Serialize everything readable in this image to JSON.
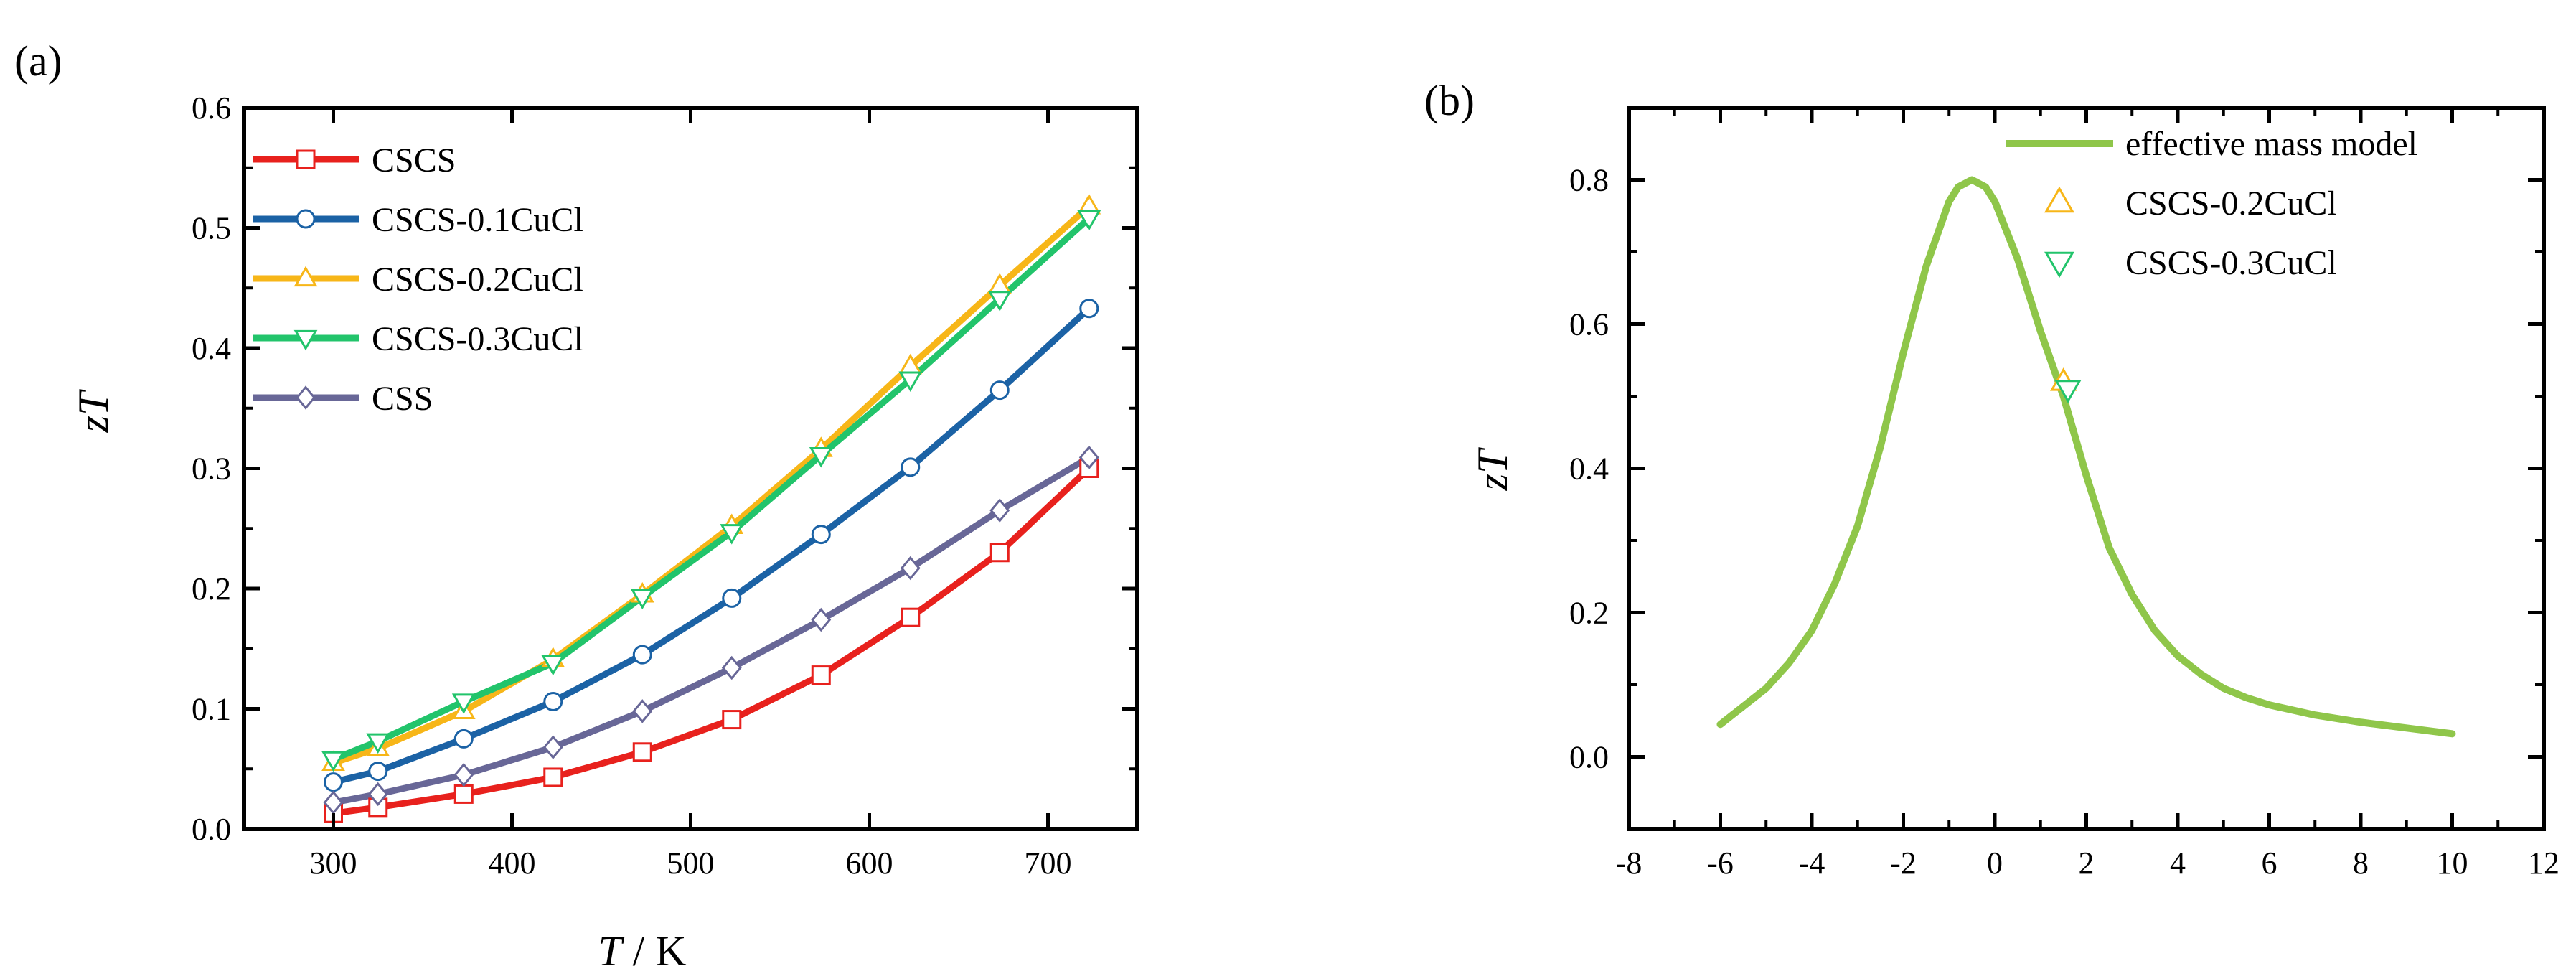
{
  "chart_data": [
    {
      "panel_label": "(a)",
      "type": "line",
      "xlabel_italic": "T",
      "xlabel_rest": " / K",
      "ylabel": "zT",
      "xlim": [
        250,
        750
      ],
      "ylim": [
        0.0,
        0.6
      ],
      "xticks": [
        300,
        400,
        500,
        600,
        700
      ],
      "yticks": [
        0.0,
        0.1,
        0.2,
        0.3,
        0.4,
        0.5,
        0.6
      ],
      "ytick_labels": [
        "0.0",
        "0.1",
        "0.2",
        "0.3",
        "0.4",
        "0.5",
        "0.6"
      ],
      "legend_position": "top-left",
      "series": [
        {
          "name": "CSCS",
          "color": "#e8211d",
          "marker": "square",
          "x": [
            300,
            325,
            373,
            423,
            473,
            523,
            573,
            623,
            673,
            723
          ],
          "y": [
            0.013,
            0.018,
            0.029,
            0.043,
            0.064,
            0.091,
            0.128,
            0.176,
            0.23,
            0.3
          ]
        },
        {
          "name": "CSCS-0.1CuCl",
          "color": "#1b62a5",
          "marker": "circle",
          "x": [
            300,
            325,
            373,
            423,
            473,
            523,
            573,
            623,
            673,
            723
          ],
          "y": [
            0.039,
            0.048,
            0.075,
            0.106,
            0.145,
            0.192,
            0.245,
            0.301,
            0.365,
            0.433
          ]
        },
        {
          "name": "CSCS-0.2CuCl",
          "color": "#f7b618",
          "marker": "triangle-up",
          "x": [
            300,
            325,
            373,
            423,
            473,
            523,
            573,
            623,
            673,
            723
          ],
          "y": [
            0.055,
            0.067,
            0.098,
            0.141,
            0.195,
            0.252,
            0.316,
            0.385,
            0.452,
            0.518
          ]
        },
        {
          "name": "CSCS-0.3CuCl",
          "color": "#22c46b",
          "marker": "triangle-down",
          "x": [
            300,
            325,
            373,
            423,
            473,
            523,
            573,
            623,
            673,
            723
          ],
          "y": [
            0.058,
            0.073,
            0.106,
            0.138,
            0.193,
            0.247,
            0.311,
            0.374,
            0.441,
            0.508
          ]
        },
        {
          "name": "CSS",
          "color": "#686797",
          "marker": "diamond",
          "x": [
            300,
            325,
            373,
            423,
            473,
            523,
            573,
            623,
            673,
            723
          ],
          "y": [
            0.022,
            0.029,
            0.045,
            0.068,
            0.098,
            0.134,
            0.174,
            0.217,
            0.265,
            0.309
          ]
        }
      ]
    },
    {
      "panel_label": "(b)",
      "type": "line",
      "xlabel": "",
      "ylabel": "zT",
      "xlim": [
        -8,
        12
      ],
      "ylim": [
        -0.1,
        0.9
      ],
      "xticks": [
        -8,
        -6,
        -4,
        -2,
        0,
        2,
        4,
        6,
        8,
        10,
        12
      ],
      "xtick_labels": [
        "-8",
        "-6",
        "-4",
        "-2",
        "0",
        "2",
        "4",
        "6",
        "8",
        "10",
        "12"
      ],
      "yticks": [
        0.0,
        0.2,
        0.4,
        0.6,
        0.8
      ],
      "ytick_labels": [
        "0.0",
        "0.2",
        "0.4",
        "0.6",
        "0.8"
      ],
      "legend_position": "top-right",
      "model": {
        "name": "effective mass model",
        "color": "#8fc64a",
        "x": [
          -6,
          -5.5,
          -5,
          -4.5,
          -4,
          -3.5,
          -3,
          -2.5,
          -2,
          -1.5,
          -1,
          -0.8,
          -0.5,
          -0.2,
          0,
          0.5,
          1,
          1.5,
          2,
          2.5,
          3,
          3.5,
          4,
          4.5,
          5,
          5.5,
          6,
          7,
          8,
          9,
          10
        ],
        "y": [
          0.045,
          0.07,
          0.095,
          0.13,
          0.175,
          0.24,
          0.32,
          0.43,
          0.56,
          0.68,
          0.77,
          0.79,
          0.8,
          0.79,
          0.77,
          0.69,
          0.59,
          0.5,
          0.39,
          0.29,
          0.225,
          0.175,
          0.14,
          0.115,
          0.095,
          0.082,
          0.072,
          0.058,
          0.048,
          0.04,
          0.032
        ]
      },
      "points": [
        {
          "name": "CSCS-0.2CuCl",
          "color": "#f7b618",
          "marker": "triangle-up",
          "x": 1.5,
          "y": 0.52
        },
        {
          "name": "CSCS-0.3CuCl",
          "color": "#22c46b",
          "marker": "triangle-down",
          "x": 1.6,
          "y": 0.51
        }
      ]
    }
  ]
}
